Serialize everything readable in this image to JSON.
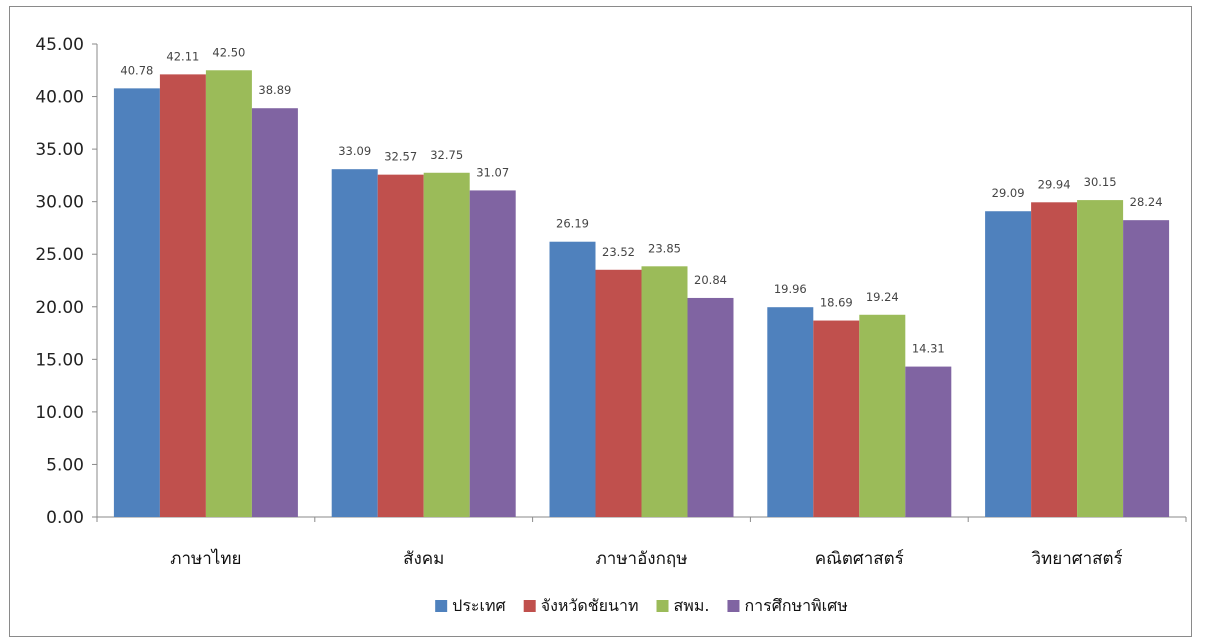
{
  "chart_data": {
    "type": "bar",
    "title": "",
    "xlabel": "",
    "ylabel": "",
    "ylim": [
      0,
      45
    ],
    "yticks": [
      "0.00",
      "5.00",
      "10.00",
      "15.00",
      "20.00",
      "25.00",
      "30.00",
      "35.00",
      "40.00",
      "45.00"
    ],
    "grid": false,
    "legend_position": "bottom",
    "categories": [
      "ภาษาไทย",
      "สังคม",
      "ภาษาอังกฤษ",
      "คณิตศาสตร์",
      "วิทยาศาสตร์"
    ],
    "series": [
      {
        "name": "ประเทศ",
        "color": "#4f81bd",
        "values": [
          40.78,
          33.09,
          26.19,
          19.96,
          29.09
        ]
      },
      {
        "name": "จังหวัดชัยนาท",
        "color": "#c0504d",
        "values": [
          42.11,
          32.57,
          23.52,
          18.69,
          29.94
        ]
      },
      {
        "name": "สพม.",
        "color": "#9bbb59",
        "values": [
          42.5,
          32.75,
          23.85,
          19.24,
          30.15
        ]
      },
      {
        "name": "การศึกษาพิเศษ",
        "color": "#8064a2",
        "values": [
          38.89,
          31.07,
          20.84,
          14.31,
          28.24
        ]
      }
    ]
  }
}
